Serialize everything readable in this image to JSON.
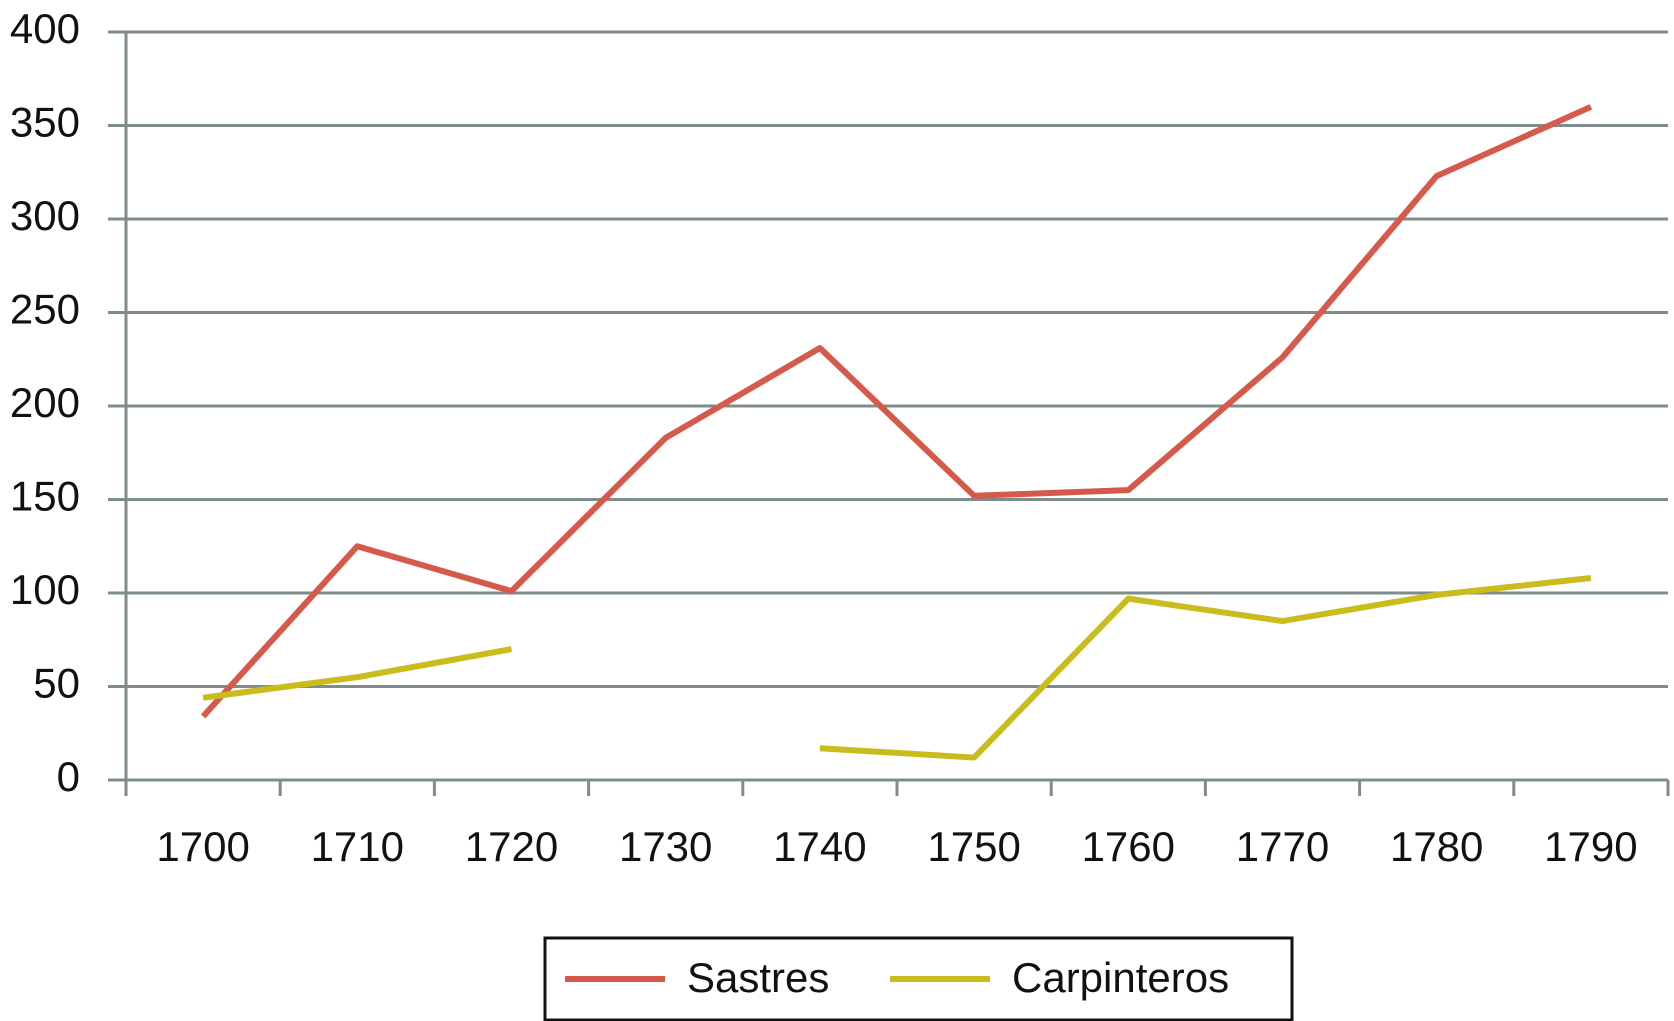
{
  "chart_data": {
    "type": "line",
    "categories": [
      "1700",
      "1710",
      "1720",
      "1730",
      "1740",
      "1750",
      "1760",
      "1770",
      "1780",
      "1790"
    ],
    "series": [
      {
        "name": "Sastres",
        "color": "#d65a4c",
        "values": [
          34,
          125,
          101,
          183,
          231,
          152,
          155,
          226,
          323,
          360
        ]
      },
      {
        "name": "Carpinteros",
        "color": "#c9bc1c",
        "values": [
          44,
          55,
          70,
          null,
          17,
          12,
          97,
          85,
          99,
          108
        ]
      }
    ],
    "ylim": [
      0,
      400
    ],
    "yticks": [
      0,
      50,
      100,
      150,
      200,
      250,
      300,
      350,
      400
    ],
    "grid": true,
    "legend": "bottom"
  }
}
